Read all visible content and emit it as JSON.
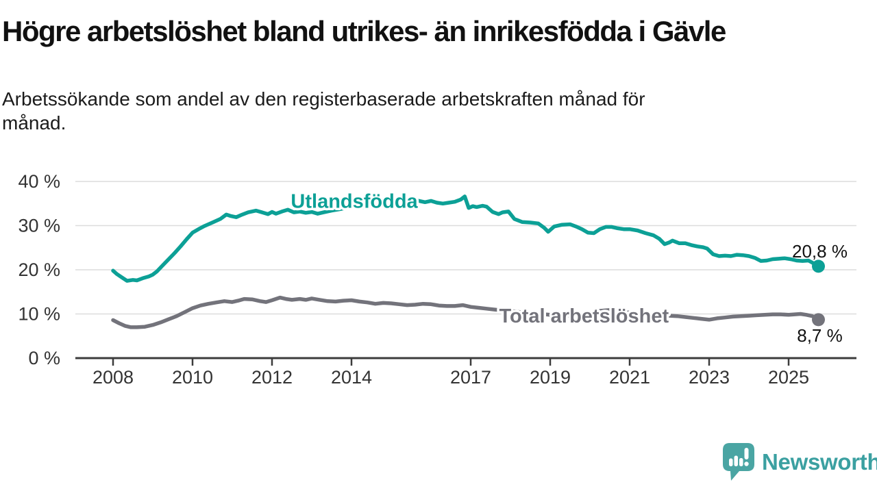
{
  "title": "Högre arbetslöshet bland utrikes- än inrikesfödda i Gävle",
  "subtitle_lines": [
    "Arbetssökande som andel av den registerbaserade arbetskraften månad för",
    "månad."
  ],
  "branding": {
    "logo_text": "Newsworthy",
    "logo_icon": "bar-chart-speech-bubble-icon",
    "logo_icon_color": "#4aa5a3",
    "logo_text_color": "#3ba0a1"
  },
  "colors": {
    "grid": "#dcdcdc",
    "axis": "#3c3c3c",
    "tick_text": "#333333",
    "value_label": "#111111",
    "teal": "#0ca096",
    "gray": "#73737b"
  },
  "chart_data": {
    "type": "line",
    "title": "Högre arbetslöshet bland utrikes- än inrikesfödda i Gävle",
    "subtitle": "Arbetssökande som andel av den registerbaserade arbetskraften månad för månad.",
    "x_unit": "decimal_year",
    "xlim": [
      2007.0,
      2026.7
    ],
    "ylim": [
      0,
      40
    ],
    "grid": "horizontal",
    "legend_position": "inline-labels",
    "y_ticks": [
      {
        "value": 40,
        "label": "40 %"
      },
      {
        "value": 30,
        "label": "30 %"
      },
      {
        "value": 20,
        "label": "20 %"
      },
      {
        "value": 10,
        "label": "10 %"
      },
      {
        "value": 0,
        "label": "0 %"
      }
    ],
    "x_ticks": [
      {
        "value": 2008,
        "label": "2008"
      },
      {
        "value": 2010,
        "label": "2010"
      },
      {
        "value": 2012,
        "label": "2012"
      },
      {
        "value": 2014,
        "label": "2014"
      },
      {
        "value": 2017,
        "label": "2017"
      },
      {
        "value": 2019,
        "label": "2019"
      },
      {
        "value": 2021,
        "label": "2021"
      },
      {
        "value": 2023,
        "label": "2023"
      },
      {
        "value": 2025,
        "label": "2025"
      }
    ],
    "series": [
      {
        "id": "total",
        "name": "Total arbetslöshet",
        "color": "#73737b",
        "end_label": "8,7 %",
        "end_label_side": "below",
        "name_label": {
          "x": 2019.85,
          "y": 8.1
        },
        "points": [
          [
            2008.0,
            8.6
          ],
          [
            2008.15,
            7.9
          ],
          [
            2008.3,
            7.3
          ],
          [
            2008.45,
            7.0
          ],
          [
            2008.6,
            7.0
          ],
          [
            2008.8,
            7.1
          ],
          [
            2009.0,
            7.5
          ],
          [
            2009.2,
            8.1
          ],
          [
            2009.4,
            8.8
          ],
          [
            2009.6,
            9.5
          ],
          [
            2009.8,
            10.4
          ],
          [
            2010.0,
            11.3
          ],
          [
            2010.2,
            11.9
          ],
          [
            2010.4,
            12.3
          ],
          [
            2010.6,
            12.6
          ],
          [
            2010.8,
            12.9
          ],
          [
            2011.0,
            12.7
          ],
          [
            2011.15,
            13.0
          ],
          [
            2011.3,
            13.4
          ],
          [
            2011.5,
            13.3
          ],
          [
            2011.7,
            12.9
          ],
          [
            2011.85,
            12.7
          ],
          [
            2012.0,
            13.1
          ],
          [
            2012.2,
            13.7
          ],
          [
            2012.35,
            13.4
          ],
          [
            2012.5,
            13.2
          ],
          [
            2012.7,
            13.4
          ],
          [
            2012.85,
            13.2
          ],
          [
            2013.0,
            13.5
          ],
          [
            2013.2,
            13.2
          ],
          [
            2013.4,
            12.9
          ],
          [
            2013.6,
            12.8
          ],
          [
            2013.8,
            13.0
          ],
          [
            2014.0,
            13.1
          ],
          [
            2014.2,
            12.8
          ],
          [
            2014.4,
            12.6
          ],
          [
            2014.6,
            12.3
          ],
          [
            2014.8,
            12.5
          ],
          [
            2015.0,
            12.4
          ],
          [
            2015.2,
            12.2
          ],
          [
            2015.4,
            12.0
          ],
          [
            2015.6,
            12.1
          ],
          [
            2015.8,
            12.3
          ],
          [
            2016.0,
            12.2
          ],
          [
            2016.2,
            11.9
          ],
          [
            2016.4,
            11.8
          ],
          [
            2016.6,
            11.8
          ],
          [
            2016.8,
            12.0
          ],
          [
            2017.0,
            11.6
          ],
          [
            2017.2,
            11.4
          ],
          [
            2017.4,
            11.2
          ],
          [
            2017.6,
            11.0
          ],
          [
            2017.8,
            10.8
          ],
          [
            2018.0,
            10.7
          ],
          [
            2018.25,
            10.4
          ],
          [
            2018.5,
            10.2
          ],
          [
            2018.75,
            10.0
          ],
          [
            2019.0,
            9.8
          ],
          [
            2019.25,
            9.7
          ],
          [
            2019.5,
            9.6
          ],
          [
            2019.75,
            9.7
          ],
          [
            2020.0,
            9.9
          ],
          [
            2020.25,
            10.7
          ],
          [
            2020.5,
            10.9
          ],
          [
            2020.75,
            10.6
          ],
          [
            2021.0,
            10.3
          ],
          [
            2021.25,
            10.0
          ],
          [
            2021.5,
            9.8
          ],
          [
            2021.75,
            9.7
          ],
          [
            2022.0,
            9.6
          ],
          [
            2022.2,
            9.5
          ],
          [
            2022.4,
            9.3
          ],
          [
            2022.6,
            9.1
          ],
          [
            2022.8,
            8.9
          ],
          [
            2023.0,
            8.7
          ],
          [
            2023.2,
            9.0
          ],
          [
            2023.4,
            9.2
          ],
          [
            2023.6,
            9.4
          ],
          [
            2023.8,
            9.5
          ],
          [
            2024.0,
            9.6
          ],
          [
            2024.2,
            9.7
          ],
          [
            2024.4,
            9.8
          ],
          [
            2024.6,
            9.9
          ],
          [
            2024.8,
            9.9
          ],
          [
            2025.0,
            9.8
          ],
          [
            2025.15,
            9.9
          ],
          [
            2025.3,
            10.0
          ],
          [
            2025.45,
            9.8
          ],
          [
            2025.6,
            9.5
          ],
          [
            2025.75,
            8.7
          ]
        ]
      },
      {
        "id": "utlandsfodda",
        "name": "Utlandsfödda",
        "color": "#0ca096",
        "end_label": "20,8 %",
        "end_label_side": "above",
        "name_label": {
          "x": 2014.07,
          "y": 34.0
        },
        "points": [
          [
            2008.0,
            19.8
          ],
          [
            2008.1,
            19.0
          ],
          [
            2008.2,
            18.4
          ],
          [
            2008.35,
            17.5
          ],
          [
            2008.5,
            17.7
          ],
          [
            2008.6,
            17.6
          ],
          [
            2008.75,
            18.1
          ],
          [
            2008.9,
            18.5
          ],
          [
            2009.0,
            18.9
          ],
          [
            2009.1,
            19.6
          ],
          [
            2009.25,
            21.0
          ],
          [
            2009.4,
            22.4
          ],
          [
            2009.55,
            23.8
          ],
          [
            2009.7,
            25.3
          ],
          [
            2009.85,
            26.9
          ],
          [
            2010.0,
            28.4
          ],
          [
            2010.15,
            29.2
          ],
          [
            2010.3,
            29.9
          ],
          [
            2010.5,
            30.7
          ],
          [
            2010.7,
            31.5
          ],
          [
            2010.85,
            32.5
          ],
          [
            2010.95,
            32.2
          ],
          [
            2011.1,
            31.9
          ],
          [
            2011.25,
            32.5
          ],
          [
            2011.4,
            33.0
          ],
          [
            2011.6,
            33.4
          ],
          [
            2011.75,
            33.0
          ],
          [
            2011.9,
            32.6
          ],
          [
            2012.0,
            33.1
          ],
          [
            2012.1,
            32.7
          ],
          [
            2012.25,
            33.2
          ],
          [
            2012.4,
            33.6
          ],
          [
            2012.55,
            33.0
          ],
          [
            2012.7,
            33.2
          ],
          [
            2012.85,
            32.9
          ],
          [
            2013.0,
            33.1
          ],
          [
            2013.15,
            32.7
          ],
          [
            2013.3,
            33.0
          ],
          [
            2013.5,
            33.4
          ],
          [
            2013.7,
            33.7
          ],
          [
            2013.85,
            34.0
          ],
          [
            2014.0,
            34.2
          ],
          [
            2014.2,
            34.0
          ],
          [
            2014.4,
            34.4
          ],
          [
            2014.6,
            34.7
          ],
          [
            2014.8,
            35.0
          ],
          [
            2015.0,
            35.2
          ],
          [
            2015.2,
            35.5
          ],
          [
            2015.4,
            35.7
          ],
          [
            2015.55,
            35.9
          ],
          [
            2015.7,
            35.6
          ],
          [
            2015.85,
            35.3
          ],
          [
            2016.0,
            35.6
          ],
          [
            2016.15,
            35.2
          ],
          [
            2016.3,
            35.0
          ],
          [
            2016.45,
            35.2
          ],
          [
            2016.6,
            35.4
          ],
          [
            2016.75,
            35.9
          ],
          [
            2016.85,
            36.6
          ],
          [
            2016.95,
            34.0
          ],
          [
            2017.05,
            34.4
          ],
          [
            2017.15,
            34.2
          ],
          [
            2017.3,
            34.5
          ],
          [
            2017.4,
            34.3
          ],
          [
            2017.55,
            33.1
          ],
          [
            2017.7,
            32.6
          ],
          [
            2017.8,
            33.0
          ],
          [
            2017.95,
            33.2
          ],
          [
            2018.1,
            31.5
          ],
          [
            2018.3,
            30.8
          ],
          [
            2018.5,
            30.7
          ],
          [
            2018.7,
            30.5
          ],
          [
            2018.85,
            29.5
          ],
          [
            2018.95,
            28.6
          ],
          [
            2019.1,
            29.8
          ],
          [
            2019.3,
            30.2
          ],
          [
            2019.5,
            30.3
          ],
          [
            2019.65,
            29.8
          ],
          [
            2019.8,
            29.2
          ],
          [
            2019.95,
            28.4
          ],
          [
            2020.1,
            28.3
          ],
          [
            2020.25,
            29.2
          ],
          [
            2020.4,
            29.7
          ],
          [
            2020.55,
            29.7
          ],
          [
            2020.7,
            29.4
          ],
          [
            2020.85,
            29.2
          ],
          [
            2021.0,
            29.2
          ],
          [
            2021.2,
            28.9
          ],
          [
            2021.4,
            28.3
          ],
          [
            2021.6,
            27.8
          ],
          [
            2021.75,
            27.0
          ],
          [
            2021.88,
            25.8
          ],
          [
            2022.0,
            26.2
          ],
          [
            2022.08,
            26.6
          ],
          [
            2022.25,
            26.0
          ],
          [
            2022.4,
            26.0
          ],
          [
            2022.55,
            25.6
          ],
          [
            2022.7,
            25.3
          ],
          [
            2022.85,
            25.1
          ],
          [
            2022.95,
            24.8
          ],
          [
            2023.1,
            23.5
          ],
          [
            2023.25,
            23.1
          ],
          [
            2023.4,
            23.2
          ],
          [
            2023.55,
            23.1
          ],
          [
            2023.7,
            23.4
          ],
          [
            2023.85,
            23.3
          ],
          [
            2024.0,
            23.1
          ],
          [
            2024.15,
            22.7
          ],
          [
            2024.3,
            22.0
          ],
          [
            2024.45,
            22.1
          ],
          [
            2024.6,
            22.4
          ],
          [
            2024.75,
            22.5
          ],
          [
            2024.9,
            22.6
          ],
          [
            2025.05,
            22.4
          ],
          [
            2025.2,
            22.1
          ],
          [
            2025.35,
            22.0
          ],
          [
            2025.5,
            22.1
          ],
          [
            2025.6,
            21.6
          ],
          [
            2025.75,
            20.8
          ]
        ]
      }
    ]
  }
}
